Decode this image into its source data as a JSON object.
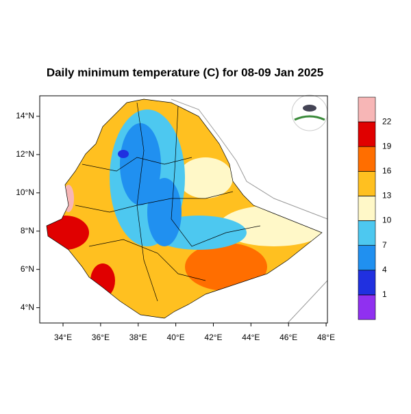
{
  "title": "Daily minimum temperature (C) for 08-09 Jan 2025",
  "map": {
    "xlim": [
      32.76,
      48.07
    ],
    "ylim": [
      3.2,
      15.07
    ],
    "xticks": [
      {
        "value": 34,
        "label": "34°E"
      },
      {
        "value": 36,
        "label": "36°E"
      },
      {
        "value": 38,
        "label": "38°E"
      },
      {
        "value": 40,
        "label": "40°E"
      },
      {
        "value": 42,
        "label": "42°E"
      },
      {
        "value": 44,
        "label": "44°E"
      },
      {
        "value": 46,
        "label": "46°E"
      },
      {
        "value": 48,
        "label": "48°E"
      }
    ],
    "yticks": [
      {
        "value": 4,
        "label": "4°N"
      },
      {
        "value": 6,
        "label": "6°N"
      },
      {
        "value": 8,
        "label": "8°N"
      },
      {
        "value": 10,
        "label": "10°N"
      },
      {
        "value": 12,
        "label": "12°N"
      },
      {
        "value": 14,
        "label": "14°N"
      }
    ]
  },
  "colorbar": {
    "levels": [
      1,
      4,
      7,
      10,
      13,
      16,
      19,
      22
    ],
    "colors": [
      "#9030f0",
      "#2030e0",
      "#2090f0",
      "#4dc8f0",
      "#fff8c8",
      "#ffc020",
      "#ff6e00",
      "#e00000",
      "#f7b6b6"
    ]
  }
}
